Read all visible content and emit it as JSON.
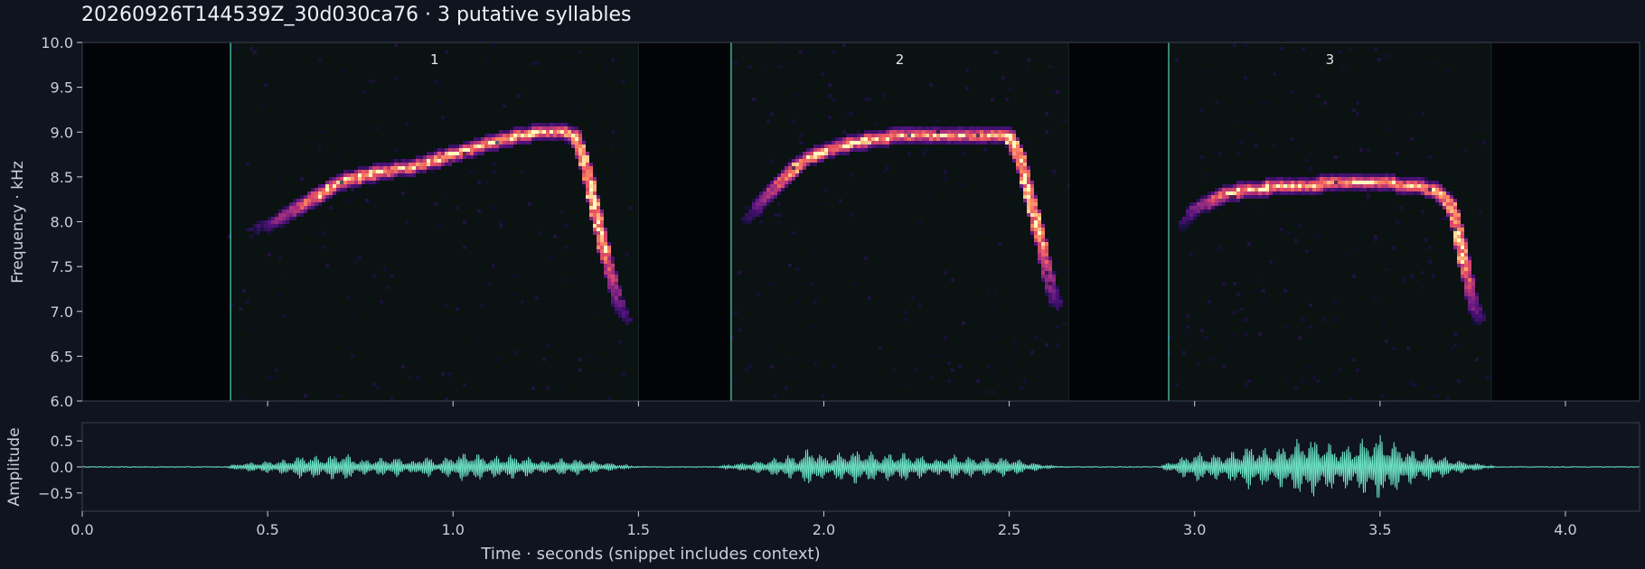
{
  "title": "20260926T144539Z_30d030ca76  ·  3 putative syllables",
  "colors": {
    "background": "#10141f",
    "plot_background": "#030407",
    "syllable_region": "#0a1212",
    "boundary": "#4fc7ac",
    "waveform": "#6ee6c8",
    "axis_text": "#c9ced8",
    "title_text": "#eef1f6",
    "spine": "#3a4152"
  },
  "chart_data": [
    {
      "type": "heatmap",
      "name": "spectrogram",
      "title": "20260926T144539Z_30d030ca76  ·  3 putative syllables",
      "xlabel": "",
      "ylabel": "Frequency · kHz",
      "xlim": [
        0.0,
        4.2
      ],
      "ylim": [
        6.0,
        10.0
      ],
      "y_ticks": [
        6.0,
        6.5,
        7.0,
        7.5,
        8.0,
        8.5,
        9.0,
        9.5,
        10.0
      ],
      "y_tick_labels": [
        "6.0",
        "6.5",
        "7.0",
        "7.5",
        "8.0",
        "8.5",
        "9.0",
        "9.5",
        "10.0"
      ],
      "x_ticks": [
        0.5,
        1.0,
        1.5,
        2.0,
        2.5,
        3.0,
        3.5,
        4.0
      ],
      "colormap": "magma",
      "syllables": [
        {
          "label": "1",
          "start": 0.4,
          "end": 1.5,
          "contour": [
            [
              0.42,
              7.9
            ],
            [
              0.5,
              7.95
            ],
            [
              0.6,
              8.2
            ],
            [
              0.7,
              8.45
            ],
            [
              0.8,
              8.55
            ],
            [
              0.9,
              8.62
            ],
            [
              1.0,
              8.75
            ],
            [
              1.1,
              8.88
            ],
            [
              1.2,
              8.98
            ],
            [
              1.3,
              9.0
            ],
            [
              1.33,
              8.95
            ],
            [
              1.36,
              8.6
            ],
            [
              1.39,
              8.0
            ],
            [
              1.42,
              7.5
            ],
            [
              1.45,
              7.05
            ],
            [
              1.47,
              6.9
            ]
          ]
        },
        {
          "label": "2",
          "start": 1.75,
          "end": 2.66,
          "contour": [
            [
              1.77,
              7.9
            ],
            [
              1.85,
              8.3
            ],
            [
              1.95,
              8.7
            ],
            [
              2.05,
              8.85
            ],
            [
              2.15,
              8.93
            ],
            [
              2.25,
              8.98
            ],
            [
              2.35,
              8.98
            ],
            [
              2.45,
              8.97
            ],
            [
              2.5,
              8.95
            ],
            [
              2.53,
              8.7
            ],
            [
              2.56,
              8.2
            ],
            [
              2.59,
              7.7
            ],
            [
              2.61,
              7.3
            ],
            [
              2.63,
              7.05
            ]
          ]
        },
        {
          "label": "3",
          "start": 2.93,
          "end": 3.8,
          "contour": [
            [
              2.95,
              7.85
            ],
            [
              3.0,
              8.15
            ],
            [
              3.1,
              8.33
            ],
            [
              3.2,
              8.38
            ],
            [
              3.35,
              8.42
            ],
            [
              3.5,
              8.43
            ],
            [
              3.6,
              8.4
            ],
            [
              3.65,
              8.35
            ],
            [
              3.69,
              8.2
            ],
            [
              3.71,
              7.9
            ],
            [
              3.73,
              7.5
            ],
            [
              3.75,
              7.1
            ],
            [
              3.77,
              6.9
            ]
          ]
        }
      ]
    },
    {
      "type": "line",
      "name": "waveform",
      "xlabel": "Time · seconds (snippet includes context)",
      "ylabel": "Amplitude",
      "xlim": [
        0.0,
        4.2
      ],
      "ylim": [
        -0.85,
        0.85
      ],
      "x_ticks": [
        0.0,
        0.5,
        1.0,
        1.5,
        2.0,
        2.5,
        3.0,
        3.5,
        4.0
      ],
      "x_tick_labels": [
        "0.0",
        "0.5",
        "1.0",
        "1.5",
        "2.0",
        "2.5",
        "3.0",
        "3.5",
        "4.0"
      ],
      "y_ticks": [
        0.5,
        0.0,
        -0.5
      ],
      "y_tick_labels": [
        "0.5",
        "0.0",
        "−0.5"
      ],
      "envelope": [
        [
          0.0,
          0.0
        ],
        [
          0.38,
          0.0
        ],
        [
          0.43,
          0.08
        ],
        [
          0.5,
          0.12
        ],
        [
          0.55,
          0.15
        ],
        [
          0.6,
          0.25
        ],
        [
          0.65,
          0.2
        ],
        [
          0.7,
          0.3
        ],
        [
          0.75,
          0.15
        ],
        [
          0.8,
          0.18
        ],
        [
          0.85,
          0.2
        ],
        [
          0.9,
          0.1
        ],
        [
          0.92,
          0.3
        ],
        [
          0.95,
          0.1
        ],
        [
          1.0,
          0.25
        ],
        [
          1.05,
          0.3
        ],
        [
          1.1,
          0.2
        ],
        [
          1.15,
          0.25
        ],
        [
          1.2,
          0.2
        ],
        [
          1.25,
          0.12
        ],
        [
          1.3,
          0.18
        ],
        [
          1.35,
          0.15
        ],
        [
          1.4,
          0.1
        ],
        [
          1.48,
          0.02
        ],
        [
          1.53,
          0.0
        ],
        [
          1.7,
          0.0
        ],
        [
          1.78,
          0.08
        ],
        [
          1.85,
          0.15
        ],
        [
          1.9,
          0.25
        ],
        [
          1.93,
          0.2
        ],
        [
          1.97,
          0.45
        ],
        [
          2.0,
          0.2
        ],
        [
          2.05,
          0.3
        ],
        [
          2.1,
          0.35
        ],
        [
          2.15,
          0.25
        ],
        [
          2.2,
          0.3
        ],
        [
          2.25,
          0.25
        ],
        [
          2.3,
          0.15
        ],
        [
          2.35,
          0.25
        ],
        [
          2.4,
          0.2
        ],
        [
          2.45,
          0.18
        ],
        [
          2.5,
          0.2
        ],
        [
          2.55,
          0.1
        ],
        [
          2.62,
          0.02
        ],
        [
          2.68,
          0.0
        ],
        [
          2.9,
          0.0
        ],
        [
          2.95,
          0.15
        ],
        [
          3.0,
          0.3
        ],
        [
          3.05,
          0.25
        ],
        [
          3.1,
          0.3
        ],
        [
          3.15,
          0.45
        ],
        [
          3.2,
          0.35
        ],
        [
          3.25,
          0.45
        ],
        [
          3.3,
          0.62
        ],
        [
          3.35,
          0.5
        ],
        [
          3.4,
          0.4
        ],
        [
          3.45,
          0.55
        ],
        [
          3.5,
          0.65
        ],
        [
          3.55,
          0.45
        ],
        [
          3.6,
          0.3
        ],
        [
          3.65,
          0.25
        ],
        [
          3.7,
          0.15
        ],
        [
          3.75,
          0.08
        ],
        [
          3.82,
          0.0
        ],
        [
          4.2,
          0.0
        ]
      ]
    }
  ]
}
